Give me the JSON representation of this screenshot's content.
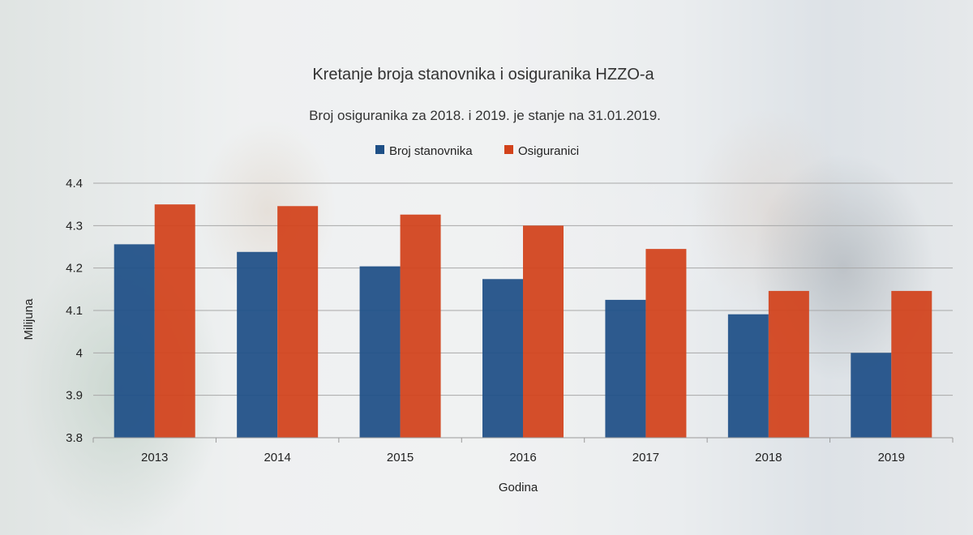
{
  "chart_data": {
    "type": "bar",
    "title": "Kretanje broja stanovnika i osiguranika HZZO-a",
    "subtitle": "Broj osiguranika za 2018. i 2019. je stanje na 31.01.2019.",
    "xlabel": "Godina",
    "ylabel": "Milijuna",
    "categories": [
      "2013",
      "2014",
      "2015",
      "2016",
      "2017",
      "2018",
      "2019"
    ],
    "series": [
      {
        "name": "Broj stanovnika",
        "color": "#1e4f86",
        "values": [
          4.256,
          4.238,
          4.204,
          4.174,
          4.125,
          4.091,
          4.0
        ]
      },
      {
        "name": "Osiguranici",
        "color": "#d2421b",
        "values": [
          4.35,
          4.346,
          4.326,
          4.3,
          4.245,
          4.146,
          4.146
        ]
      }
    ],
    "ylim": [
      3.8,
      4.4
    ],
    "yticks": [
      "3.8",
      "3.9",
      "4",
      "4.1",
      "4.2",
      "4.3",
      "4.4"
    ],
    "grid": true,
    "legend_position": "top-center"
  }
}
